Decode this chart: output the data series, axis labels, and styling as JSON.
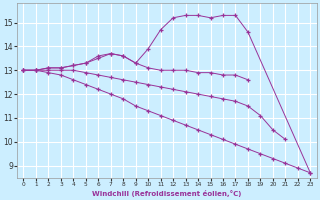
{
  "xlabel": "Windchill (Refroidissement éolien,°C)",
  "bg_color": "#cceeff",
  "grid_color": "#ffffff",
  "line_color": "#993399",
  "x_values": [
    0,
    1,
    2,
    3,
    4,
    5,
    6,
    7,
    8,
    9,
    10,
    11,
    12,
    13,
    14,
    15,
    16,
    17,
    18,
    19,
    20,
    21,
    22,
    23
  ],
  "line1_x": [
    0,
    1,
    2,
    3,
    4,
    5,
    6,
    7,
    8,
    9,
    10,
    11,
    12,
    13,
    14,
    15,
    16,
    17,
    18,
    23
  ],
  "line1_y": [
    13.0,
    13.0,
    13.1,
    13.1,
    13.2,
    13.3,
    13.6,
    13.7,
    13.6,
    13.3,
    13.9,
    14.7,
    15.2,
    15.3,
    15.3,
    15.2,
    15.3,
    15.3,
    14.6,
    8.7
  ],
  "line2_x": [
    0,
    1,
    2,
    3,
    4,
    5,
    6,
    7,
    8,
    9,
    10,
    11,
    12,
    13,
    14,
    15,
    16,
    17,
    18
  ],
  "line2_y": [
    13.0,
    13.0,
    13.1,
    13.1,
    13.2,
    13.3,
    13.5,
    13.7,
    13.6,
    13.3,
    13.1,
    13.0,
    13.0,
    13.0,
    12.9,
    12.9,
    12.8,
    12.8,
    12.6
  ],
  "line3_x": [
    0,
    1,
    2,
    3,
    4,
    5,
    6,
    7,
    8,
    9,
    10,
    11,
    12,
    13,
    14,
    15,
    16,
    17,
    18,
    19,
    20,
    21
  ],
  "line3_y": [
    13.0,
    13.0,
    13.0,
    13.0,
    13.0,
    12.9,
    12.8,
    12.7,
    12.6,
    12.5,
    12.4,
    12.3,
    12.2,
    12.1,
    12.0,
    11.9,
    11.8,
    11.7,
    11.5,
    11.1,
    10.5,
    10.1
  ],
  "line4_x": [
    0,
    1,
    2,
    3,
    4,
    5,
    6,
    7,
    8,
    9,
    10,
    11,
    12,
    13,
    14,
    15,
    16,
    17,
    18,
    19,
    20,
    21,
    22,
    23
  ],
  "line4_y": [
    13.0,
    13.0,
    12.9,
    12.8,
    12.6,
    12.4,
    12.2,
    12.0,
    11.8,
    11.5,
    11.3,
    11.1,
    10.9,
    10.7,
    10.5,
    10.3,
    10.1,
    9.9,
    9.7,
    9.5,
    9.3,
    9.1,
    8.9,
    8.7
  ],
  "ylim": [
    8.5,
    15.8
  ],
  "xlim": [
    -0.5,
    23.5
  ],
  "yticks": [
    9,
    10,
    11,
    12,
    13,
    14,
    15
  ],
  "xticks": [
    0,
    1,
    2,
    3,
    4,
    5,
    6,
    7,
    8,
    9,
    10,
    11,
    12,
    13,
    14,
    15,
    16,
    17,
    18,
    19,
    20,
    21,
    22,
    23
  ]
}
